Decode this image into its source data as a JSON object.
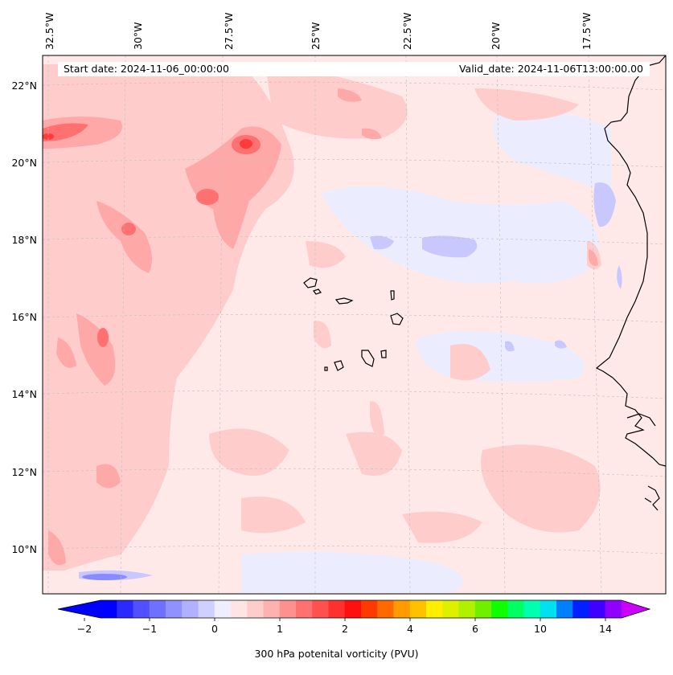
{
  "header": {
    "start_date": "Start date: 2024-11-06_00:00:00",
    "valid_date": "Valid_date: 2024-11-06T13:00:00.00"
  },
  "map": {
    "lon_labels": [
      "32.5°W",
      "30°W",
      "27.5°W",
      "25°W",
      "22.5°W",
      "20°W",
      "17.5°W"
    ],
    "lat_labels": [
      "22°N",
      "20°N",
      "18°N",
      "16°N",
      "14°N",
      "12°N",
      "10°N"
    ],
    "grid": true,
    "coastline": true
  },
  "colorbar": {
    "label": "300 hPa potenital vorticity (PVU)",
    "ticks": [
      "−2",
      "−1",
      "0",
      "1",
      "2",
      "4",
      "6",
      "10",
      "14"
    ],
    "colors": [
      "#0000ff",
      "#2a2aff",
      "#5050ff",
      "#7070ff",
      "#9090ff",
      "#b0b0ff",
      "#d0d0ff",
      "#eeeeff",
      "#ffe4e4",
      "#ffcccc",
      "#ffb0b0",
      "#ff9090",
      "#ff7070",
      "#ff5050",
      "#ff3030",
      "#ff1010",
      "#ff3a00",
      "#ff6a00",
      "#ff9a00",
      "#ffc000",
      "#ffee00",
      "#dcf000",
      "#b0f000",
      "#70f000",
      "#10ff00",
      "#00ff60",
      "#00ffb0",
      "#00e0f0",
      "#0080ff",
      "#0020ff",
      "#4000ff",
      "#9000ff"
    ],
    "under_color": "#0000ff",
    "over_color": "#cc00ff"
  }
}
